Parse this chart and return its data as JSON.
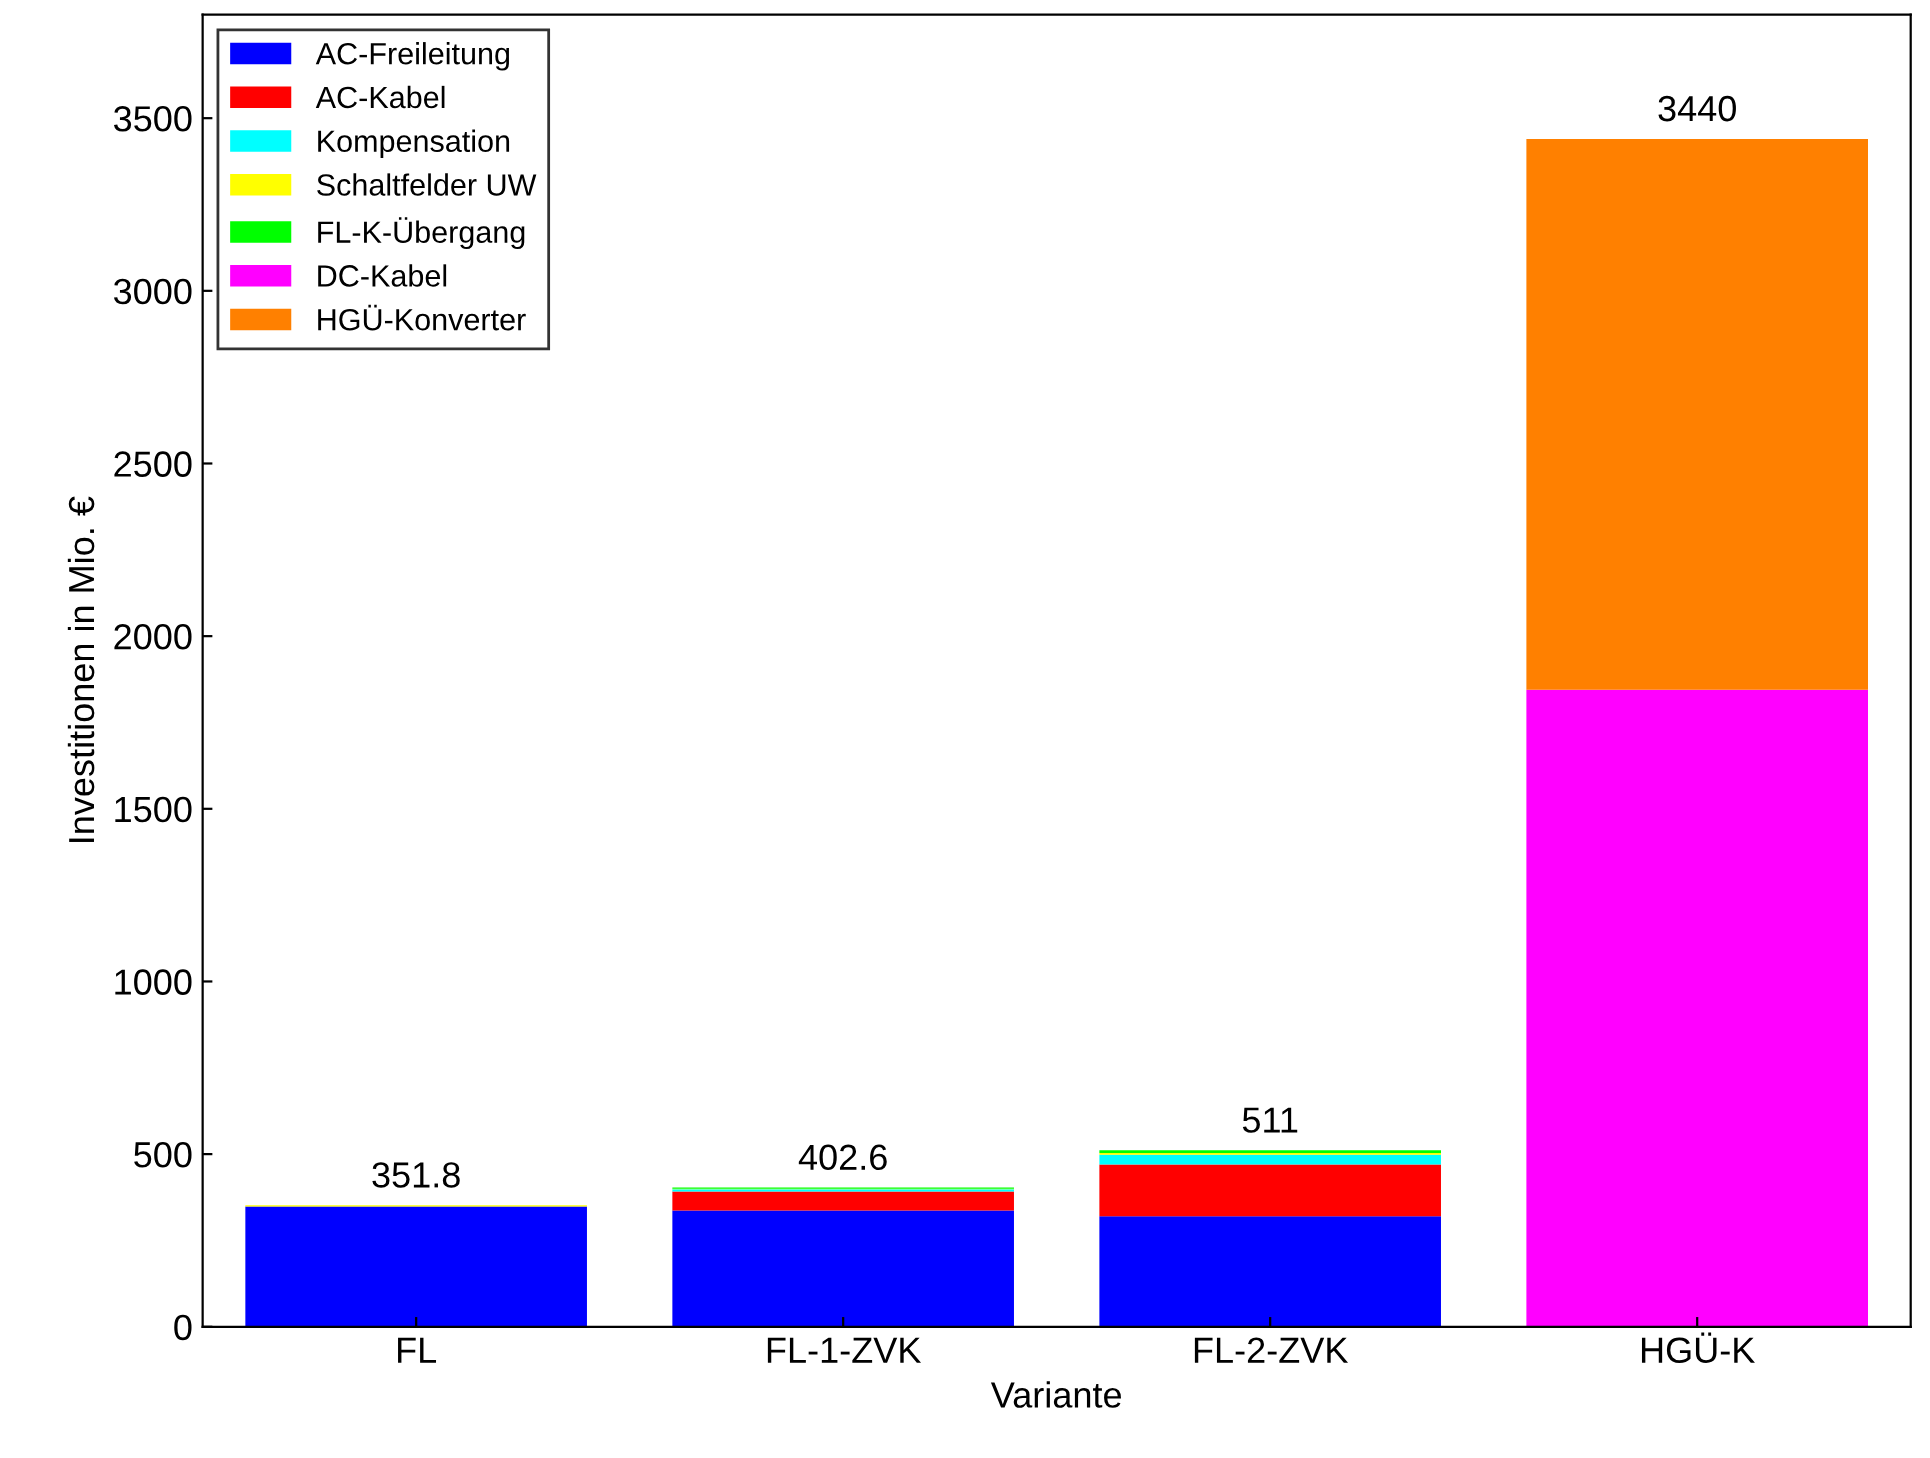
{
  "chart_data": {
    "type": "bar",
    "stacked": true,
    "xlabel": "Variante",
    "ylabel": "Investitionen in Mio. €",
    "categories": [
      "FL",
      "FL-1-ZVK",
      "FL-2-ZVK",
      "HGÜ-K"
    ],
    "series": [
      {
        "name": "AC-Freileitung",
        "color": "#0000ff",
        "values": [
          348,
          337,
          320,
          0
        ]
      },
      {
        "name": "AC-Kabel",
        "color": "#ff0000",
        "values": [
          0,
          55,
          150,
          0
        ]
      },
      {
        "name": "Kompensation",
        "color": "#00ffff",
        "values": [
          0,
          6,
          28,
          0
        ]
      },
      {
        "name": "Schaltfelder UW",
        "color": "#ffff00",
        "values": [
          4,
          2,
          5,
          0
        ]
      },
      {
        "name": "FL-K-Übergang",
        "color": "#00ff00",
        "values": [
          0,
          3,
          8,
          0
        ]
      },
      {
        "name": "DC-Kabel",
        "color": "#ff00ff",
        "values": [
          0,
          0,
          0,
          1845
        ]
      },
      {
        "name": "HGÜ-Konverter",
        "color": "#ff8000",
        "values": [
          0,
          0,
          0,
          1595
        ]
      }
    ],
    "totals": [
      "351.8",
      "402.6",
      "511",
      "3440"
    ],
    "ylim": [
      0,
      3800
    ],
    "yticks": [
      0,
      500,
      1000,
      1500,
      2000,
      2500,
      3000,
      3500
    ],
    "grid": false,
    "legend": "top left"
  }
}
